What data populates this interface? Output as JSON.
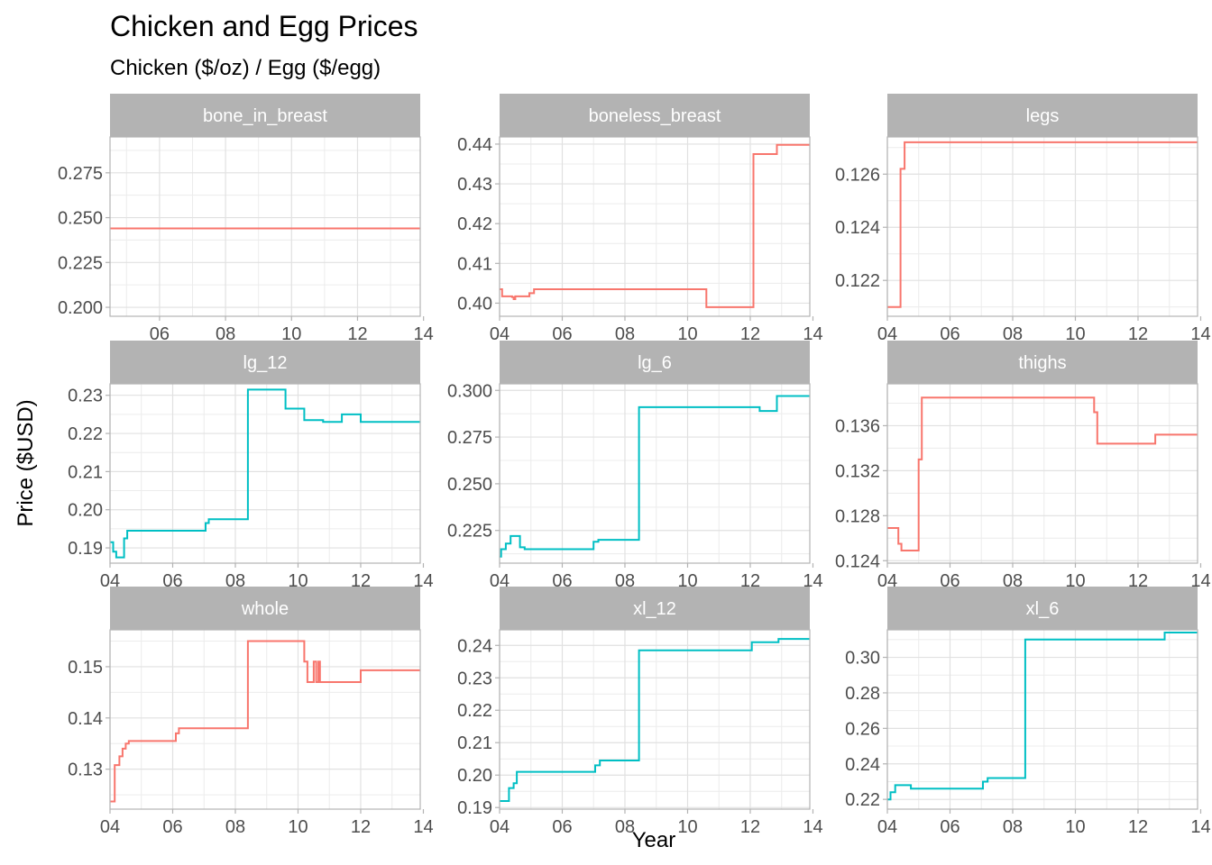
{
  "title": "Chicken and Egg Prices",
  "subtitle": "Chicken ($/oz) / Egg ($/egg)",
  "xlabel": "Year",
  "ylabel": "Price ($USD)",
  "colors": {
    "chicken": "#F8766D",
    "egg": "#00BFC4",
    "strip": "#b3b3b3",
    "grid": "#e1e1e1",
    "border": "#b3b3b3"
  },
  "chart_data": [
    {
      "type": "line",
      "panel": "bone_in_breast",
      "group": "chicken",
      "xlim": [
        2004.5,
        2013.9
      ],
      "ylim": [
        0.195,
        0.295
      ],
      "xticks": [
        2006,
        2008,
        2010,
        2012,
        2014
      ],
      "xtick_labels": [
        "06",
        "08",
        "10",
        "12",
        "14"
      ],
      "yticks": [
        0.2,
        0.225,
        0.25,
        0.275
      ],
      "ytick_labels": [
        "0.200",
        "0.225",
        "0.250",
        "0.275"
      ],
      "steps": [
        [
          2004.5,
          0.244
        ],
        [
          2013.9,
          0.244
        ]
      ]
    },
    {
      "type": "line",
      "panel": "boneless_breast",
      "group": "chicken",
      "xlim": [
        2004.0,
        2013.9
      ],
      "ylim": [
        0.3967,
        0.4418
      ],
      "xticks": [
        2004,
        2006,
        2008,
        2010,
        2012,
        2014
      ],
      "xtick_labels": [
        "04",
        "06",
        "08",
        "10",
        "12",
        "14"
      ],
      "yticks": [
        0.4,
        0.41,
        0.42,
        0.43,
        0.44
      ],
      "ytick_labels": [
        "0.40",
        "0.41",
        "0.42",
        "0.43",
        "0.44"
      ],
      "steps": [
        [
          2004.0,
          0.4035
        ],
        [
          2004.08,
          0.4017
        ],
        [
          2004.4,
          0.4015
        ],
        [
          2004.45,
          0.401
        ],
        [
          2004.5,
          0.4017
        ],
        [
          2004.95,
          0.4025
        ],
        [
          2005.1,
          0.4035
        ],
        [
          2010.6,
          0.399
        ],
        [
          2012.1,
          0.4375
        ],
        [
          2012.85,
          0.4398
        ],
        [
          2013.9,
          0.4398
        ]
      ]
    },
    {
      "type": "line",
      "panel": "legs",
      "group": "chicken",
      "xlim": [
        2004.0,
        2013.9
      ],
      "ylim": [
        0.12065,
        0.1274
      ],
      "xticks": [
        2004,
        2006,
        2008,
        2010,
        2012,
        2014
      ],
      "xtick_labels": [
        "04",
        "06",
        "08",
        "10",
        "12",
        "14"
      ],
      "yticks": [
        0.122,
        0.124,
        0.126
      ],
      "ytick_labels": [
        "0.122",
        "0.124",
        "0.126"
      ],
      "steps": [
        [
          2004.0,
          0.121
        ],
        [
          2004.42,
          0.1262
        ],
        [
          2004.55,
          0.1272
        ],
        [
          2013.9,
          0.1272
        ]
      ]
    },
    {
      "type": "line",
      "panel": "lg_12",
      "group": "egg",
      "xlim": [
        2004.0,
        2013.9
      ],
      "ylim": [
        0.186,
        0.233
      ],
      "xticks": [
        2004,
        2006,
        2008,
        2010,
        2012,
        2014
      ],
      "xtick_labels": [
        "04",
        "06",
        "08",
        "10",
        "12",
        "14"
      ],
      "yticks": [
        0.19,
        0.2,
        0.21,
        0.22,
        0.23
      ],
      "ytick_labels": [
        "0.19",
        "0.20",
        "0.21",
        "0.22",
        "0.23"
      ],
      "steps": [
        [
          2004.0,
          0.1915
        ],
        [
          2004.1,
          0.189
        ],
        [
          2004.2,
          0.1875
        ],
        [
          2004.45,
          0.1925
        ],
        [
          2004.55,
          0.1945
        ],
        [
          2007.05,
          0.1965
        ],
        [
          2007.15,
          0.1975
        ],
        [
          2008.4,
          0.2315
        ],
        [
          2009.6,
          0.2265
        ],
        [
          2010.2,
          0.2235
        ],
        [
          2010.8,
          0.223
        ],
        [
          2011.4,
          0.225
        ],
        [
          2012.0,
          0.223
        ],
        [
          2013.9,
          0.223
        ]
      ]
    },
    {
      "type": "line",
      "panel": "lg_6",
      "group": "egg",
      "xlim": [
        2004.0,
        2013.9
      ],
      "ylim": [
        0.2075,
        0.3035
      ],
      "xticks": [
        2004,
        2006,
        2008,
        2010,
        2012,
        2014
      ],
      "xtick_labels": [
        "04",
        "06",
        "08",
        "10",
        "12",
        "14"
      ],
      "yticks": [
        0.225,
        0.25,
        0.275,
        0.3
      ],
      "ytick_labels": [
        "0.225",
        "0.250",
        "0.275",
        "0.300"
      ],
      "steps": [
        [
          2004.0,
          0.211
        ],
        [
          2004.05,
          0.215
        ],
        [
          2004.2,
          0.218
        ],
        [
          2004.35,
          0.222
        ],
        [
          2004.65,
          0.216
        ],
        [
          2004.8,
          0.215
        ],
        [
          2007.0,
          0.219
        ],
        [
          2007.15,
          0.22
        ],
        [
          2008.45,
          0.291
        ],
        [
          2012.3,
          0.289
        ],
        [
          2012.85,
          0.297
        ],
        [
          2013.9,
          0.297
        ]
      ]
    },
    {
      "type": "line",
      "panel": "thighs",
      "group": "chicken",
      "xlim": [
        2004.0,
        2013.9
      ],
      "ylim": [
        0.12378,
        0.13972
      ],
      "xticks": [
        2004,
        2006,
        2008,
        2010,
        2012,
        2014
      ],
      "xtick_labels": [
        "04",
        "06",
        "08",
        "10",
        "12",
        "14"
      ],
      "yticks": [
        0.124,
        0.128,
        0.132,
        0.136
      ],
      "ytick_labels": [
        "0.124",
        "0.128",
        "0.132",
        "0.136"
      ],
      "steps": [
        [
          2004.0,
          0.1269
        ],
        [
          2004.35,
          0.1255
        ],
        [
          2004.45,
          0.1249
        ],
        [
          2005.0,
          0.133
        ],
        [
          2005.1,
          0.1385
        ],
        [
          2010.6,
          0.1372
        ],
        [
          2010.7,
          0.1344
        ],
        [
          2012.55,
          0.1352
        ],
        [
          2013.9,
          0.1352
        ]
      ]
    },
    {
      "type": "line",
      "panel": "whole",
      "group": "chicken",
      "xlim": [
        2004.0,
        2013.9
      ],
      "ylim": [
        0.1222,
        0.1572
      ],
      "xticks": [
        2004,
        2006,
        2008,
        2010,
        2012,
        2014
      ],
      "xtick_labels": [
        "04",
        "06",
        "08",
        "10",
        "12",
        "14"
      ],
      "yticks": [
        0.13,
        0.14,
        0.15
      ],
      "ytick_labels": [
        "0.13",
        "0.14",
        "0.15"
      ],
      "steps": [
        [
          2004.0,
          0.1237
        ],
        [
          2004.15,
          0.1308
        ],
        [
          2004.3,
          0.1325
        ],
        [
          2004.4,
          0.134
        ],
        [
          2004.5,
          0.135
        ],
        [
          2004.6,
          0.1355
        ],
        [
          2006.1,
          0.137
        ],
        [
          2006.2,
          0.138
        ],
        [
          2008.4,
          0.155
        ],
        [
          2010.2,
          0.151
        ],
        [
          2010.3,
          0.147
        ],
        [
          2010.5,
          0.151
        ],
        [
          2010.58,
          0.147
        ],
        [
          2010.65,
          0.151
        ],
        [
          2010.7,
          0.147
        ],
        [
          2012.0,
          0.1493
        ],
        [
          2013.9,
          0.1493
        ]
      ]
    },
    {
      "type": "line",
      "panel": "xl_12",
      "group": "egg",
      "xlim": [
        2004.0,
        2013.9
      ],
      "ylim": [
        0.1895,
        0.2448
      ],
      "xticks": [
        2004,
        2006,
        2008,
        2010,
        2012,
        2014
      ],
      "xtick_labels": [
        "04",
        "06",
        "08",
        "10",
        "12",
        "14"
      ],
      "yticks": [
        0.19,
        0.2,
        0.21,
        0.22,
        0.23,
        0.24
      ],
      "ytick_labels": [
        "0.19",
        "0.20",
        "0.21",
        "0.22",
        "0.23",
        "0.24"
      ],
      "steps": [
        [
          2004.0,
          0.192
        ],
        [
          2004.3,
          0.196
        ],
        [
          2004.45,
          0.1975
        ],
        [
          2004.55,
          0.201
        ],
        [
          2007.05,
          0.203
        ],
        [
          2007.2,
          0.2045
        ],
        [
          2008.45,
          0.2385
        ],
        [
          2012.05,
          0.241
        ],
        [
          2012.9,
          0.242
        ],
        [
          2013.9,
          0.242
        ]
      ]
    },
    {
      "type": "line",
      "panel": "xl_6",
      "group": "egg",
      "xlim": [
        2004.0,
        2013.9
      ],
      "ylim": [
        0.2145,
        0.3155
      ],
      "xticks": [
        2004,
        2006,
        2008,
        2010,
        2012,
        2014
      ],
      "xtick_labels": [
        "04",
        "06",
        "08",
        "10",
        "12",
        "14"
      ],
      "yticks": [
        0.22,
        0.24,
        0.26,
        0.28,
        0.3
      ],
      "ytick_labels": [
        "0.22",
        "0.24",
        "0.26",
        "0.28",
        "0.30"
      ],
      "steps": [
        [
          2004.0,
          0.22
        ],
        [
          2004.1,
          0.224
        ],
        [
          2004.25,
          0.228
        ],
        [
          2004.75,
          0.226
        ],
        [
          2007.05,
          0.23
        ],
        [
          2007.2,
          0.232
        ],
        [
          2008.4,
          0.31
        ],
        [
          2012.85,
          0.314
        ],
        [
          2013.9,
          0.314
        ]
      ]
    }
  ]
}
